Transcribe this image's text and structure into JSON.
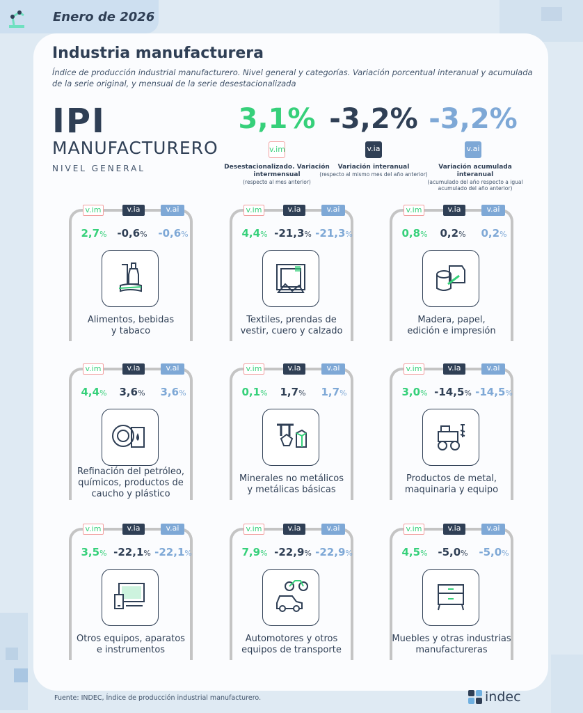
{
  "header": {
    "date": "Enero de 2026"
  },
  "title": "Industria manufacturera",
  "subtitle": "Índice de producción industrial manufacturero. Nivel general y categorías. Variación porcentual interanual y acumulada de la serie original, y mensual de la serie desestacionalizada",
  "ipi": {
    "big": "IPI",
    "manuf": "MANUFACTURERO",
    "nivel": "NIVEL GENERAL"
  },
  "kpis": [
    {
      "value": "3,1%",
      "badge": "v.im",
      "desc": "Desestacionalizado. Variación intermensual",
      "small": "(respecto al mes anterior)"
    },
    {
      "value": "-3,2%",
      "badge": "v.ia",
      "desc": "Variación interanual",
      "small": "(respecto al mismo mes del año anterior)"
    },
    {
      "value": "-3,2%",
      "badge": "v.ai",
      "desc": "Variación acumulada interanual",
      "small": "(acumulado del año respecto a igual acumulado del año anterior)"
    }
  ],
  "badges": {
    "vim": "v.im",
    "via": "v.ia",
    "vai": "v.ai"
  },
  "pct": "%",
  "tiles": [
    {
      "vim": "2,7",
      "via": "-0,6",
      "vai": "-0,6",
      "label": [
        "Alimentos, bebidas",
        "y tabaco"
      ],
      "icon": "food-icon"
    },
    {
      "vim": "4,4",
      "via": "-21,3",
      "vai": "-21,3",
      "label": [
        "Textiles, prendas de",
        "vestir, cuero y calzado"
      ],
      "icon": "textile-icon"
    },
    {
      "vim": "0,8",
      "via": "0,2",
      "vai": "0,2",
      "label": [
        "Madera, papel,",
        "edición e impresión"
      ],
      "icon": "wood-paper-icon"
    },
    {
      "vim": "4,4",
      "via": "3,6",
      "vai": "3,6",
      "label": [
        "Refinación del petróleo,",
        "químicos, productos de",
        "caucho y plástico"
      ],
      "icon": "oil-tire-icon"
    },
    {
      "vim": "0,1",
      "via": "1,7",
      "vai": "1,7",
      "label": [
        "Minerales no metálicos",
        "y metálicas básicas"
      ],
      "icon": "minerals-icon"
    },
    {
      "vim": "3,0",
      "via": "-14,5",
      "vai": "-14,5",
      "label": [
        "Productos de metal,",
        "maquinaria y equipo"
      ],
      "icon": "machinery-icon"
    },
    {
      "vim": "3,5",
      "via": "-22,1",
      "vai": "-22,1",
      "label": [
        "Otros equipos, aparatos",
        "e instrumentos"
      ],
      "icon": "devices-icon"
    },
    {
      "vim": "7,9",
      "via": "-22,9",
      "vai": "-22,9",
      "label": [
        "Automotores y otros",
        "equipos de transporte"
      ],
      "icon": "vehicles-icon"
    },
    {
      "vim": "4,5",
      "via": "-5,0",
      "vai": "-5,0",
      "label": [
        "Muebles y otras industrias",
        "manufactureras"
      ],
      "icon": "furniture-icon"
    }
  ],
  "footer": "Fuente: INDEC, Índice de producción industrial manufacturero.",
  "brand": "indec",
  "colors": {
    "green": "#36d07a",
    "dark": "#2f3f55",
    "blue": "#7ea8d6"
  }
}
